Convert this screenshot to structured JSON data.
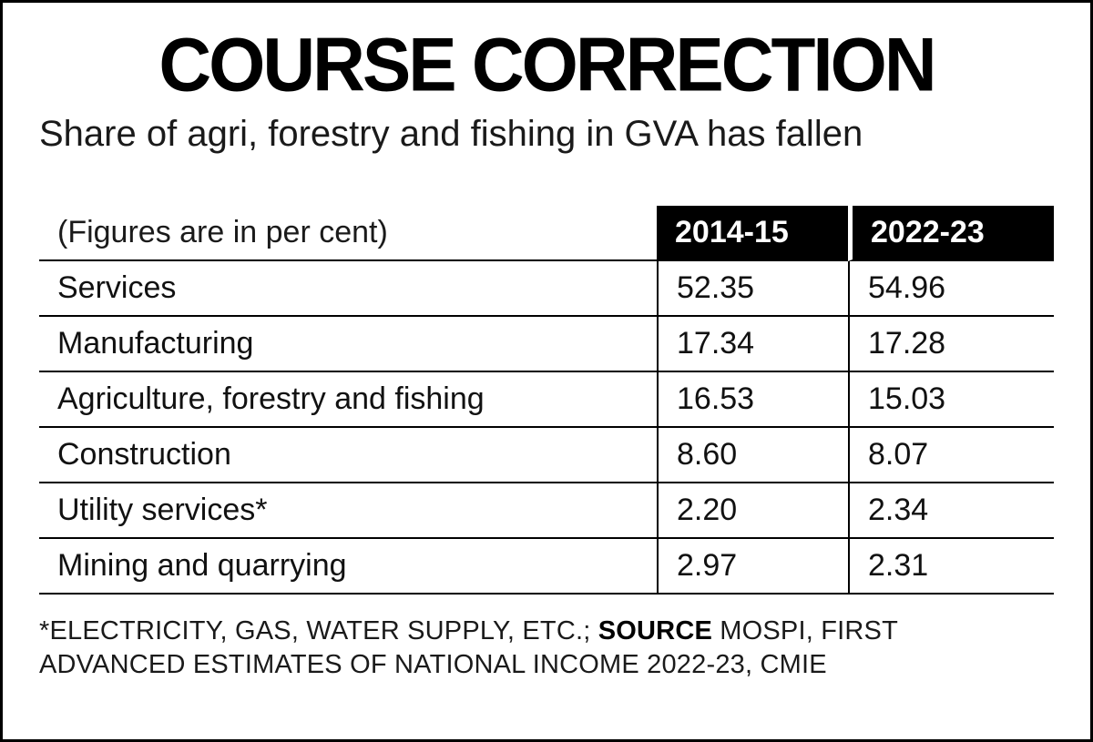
{
  "header": {
    "title": "COURSE CORRECTION",
    "subtitle": "Share of agri, forestry and fishing in GVA has fallen"
  },
  "table": {
    "unit_note": "(Figures are in per cent)",
    "year_headers": [
      "2014-15",
      "2022-23"
    ],
    "rows": [
      {
        "label": "Services",
        "v1": "52.35",
        "v2": "54.96"
      },
      {
        "label": "Manufacturing",
        "v1": "17.34",
        "v2": "17.28"
      },
      {
        "label": "Agriculture, forestry and fishing",
        "v1": "16.53",
        "v2": "15.03"
      },
      {
        "label": "Construction",
        "v1": "8.60",
        "v2": "8.07"
      },
      {
        "label": "Utility services*",
        "v1": "2.20",
        "v2": "2.34"
      },
      {
        "label": "Mining and quarrying",
        "v1": "2.97",
        "v2": "2.31"
      }
    ]
  },
  "footer": {
    "footnote_part": "*ELECTRICITY, GAS, WATER SUPPLY, ETC.; ",
    "source_label": "SOURCE",
    "source_rest": " MOSPI, FIRST ADVANCED ESTIMATES OF NATIONAL INCOME 2022-23, CMIE"
  },
  "colors": {
    "accent": "#000000",
    "header_bg": "#000000",
    "header_text": "#ffffff",
    "background": "#ffffff"
  },
  "chart_data": {
    "type": "table",
    "title": "COURSE CORRECTION",
    "subtitle": "Share of agri, forestry and fishing in GVA has fallen",
    "unit_note": "(Figures are in per cent)",
    "columns": [
      "2014-15",
      "2022-23"
    ],
    "categories": [
      "Services",
      "Manufacturing",
      "Agriculture, forestry and fishing",
      "Construction",
      "Utility services*",
      "Mining and quarrying"
    ],
    "series": [
      {
        "name": "2014-15",
        "values": [
          52.35,
          17.34,
          16.53,
          8.6,
          2.2,
          2.97
        ]
      },
      {
        "name": "2022-23",
        "values": [
          54.96,
          17.28,
          15.03,
          8.07,
          2.34,
          2.31
        ]
      }
    ],
    "footnote": "*Electricity, gas, water supply, etc.",
    "source": "MOSPI, First Advanced Estimates of National Income 2022-23, CMIE"
  }
}
